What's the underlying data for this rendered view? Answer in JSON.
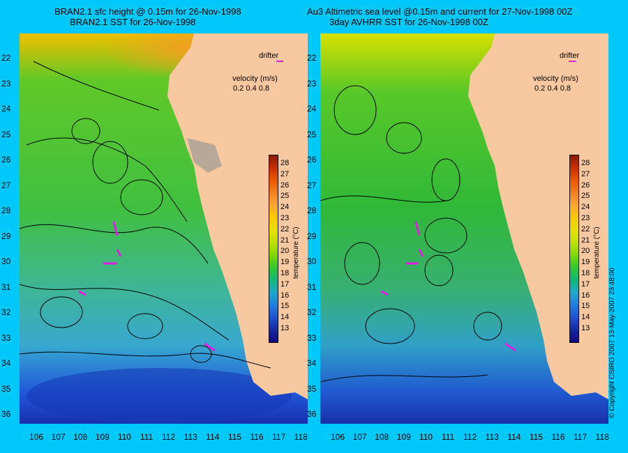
{
  "titles": {
    "left_line1": "BRAN2.1 sfc height @ 0.15m for 26-Nov-1998",
    "left_line2": "BRAN2.1 SST for 26-Nov-1998",
    "right_line1": "Au3 Altimetric sea level  @0.15m and current for 27-Nov-1998 00Z",
    "right_line2": "3day AVHRR SST for 26-Nov-1998 00Z"
  },
  "legend": {
    "drifter_label": "drifter",
    "velocity_label": "velocity (m/s)",
    "velocity_values": "0.2 0.4 0.8"
  },
  "colorbar": {
    "title": "temperature (°C)",
    "ticks": [
      "28",
      "27",
      "26",
      "25",
      "24",
      "23",
      "22",
      "21",
      "20",
      "19",
      "18",
      "17",
      "16",
      "15",
      "14",
      "13"
    ],
    "colors": [
      "#8a1800",
      "#c83000",
      "#e85800",
      "#f08020",
      "#f8a830",
      "#f8c800",
      "#e8e000",
      "#c0e000",
      "#80d800",
      "#30c830",
      "#10b878",
      "#20a8c8",
      "#2080e0",
      "#2050d0",
      "#1828a0",
      "#100880"
    ]
  },
  "latitude_labels": [
    "22",
    "23",
    "24",
    "25",
    "26",
    "27",
    "28",
    "29",
    "30",
    "31",
    "32",
    "33",
    "34",
    "35",
    "36"
  ],
  "longitude_labels": [
    "106",
    "107",
    "108",
    "109",
    "110",
    "111",
    "112",
    "113",
    "114",
    "115",
    "116",
    "117",
    "118"
  ],
  "map_colors": {
    "land": "#f8c8a0",
    "land_mask": "#b8a898",
    "drifter": "#e020e0"
  },
  "copyright": "© Copyright CSIRO 2007  13-May-2007 23:48:00"
}
